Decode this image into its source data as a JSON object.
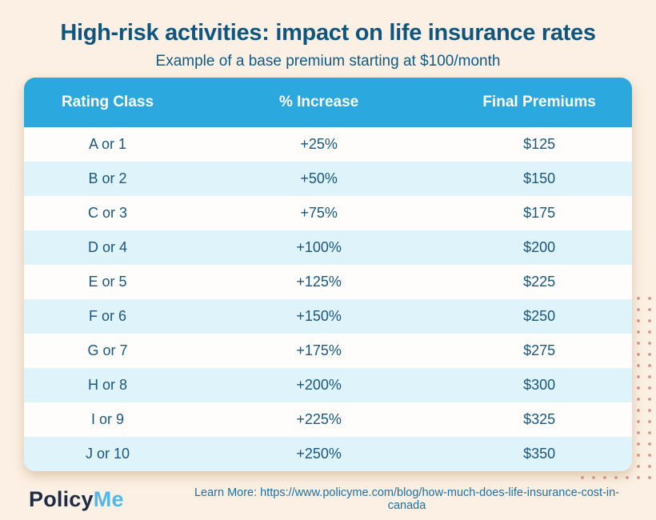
{
  "page": {
    "title": "High-risk activities: impact on life insurance rates",
    "subtitle": "Example of a base premium starting at $100/month"
  },
  "table": {
    "columns": [
      "Rating Class",
      "% Increase",
      "Final Premiums"
    ],
    "rows": [
      {
        "rating": "A or 1",
        "increase": "+25%",
        "premium": "$125"
      },
      {
        "rating": "B or 2",
        "increase": "+50%",
        "premium": "$150"
      },
      {
        "rating": "C or 3",
        "increase": "+75%",
        "premium": "$175"
      },
      {
        "rating": "D or 4",
        "increase": "+100%",
        "premium": "$200"
      },
      {
        "rating": "E or 5",
        "increase": "+125%",
        "premium": "$225"
      },
      {
        "rating": "F or 6",
        "increase": "+150%",
        "premium": "$250"
      },
      {
        "rating": "G or 7",
        "increase": "+175%",
        "premium": "$275"
      },
      {
        "rating": "H or 8",
        "increase": "+200%",
        "premium": "$300"
      },
      {
        "rating": "I or 9",
        "increase": "+225%",
        "premium": "$325"
      },
      {
        "rating": "J or 10",
        "increase": "+250%",
        "premium": "$350"
      }
    ]
  },
  "footer": {
    "logo_part1": "Policy",
    "logo_part2": "Me",
    "learn_more": "Learn More: https://www.policyme.com/blog/how-much-does-life-insurance-cost-in-canada"
  },
  "colors": {
    "background": "#FBF0E3",
    "table_header_bg": "#2BA8DE",
    "row_white_bg": "#FEFDFB",
    "row_blue_bg": "#DFF3FB",
    "title_text": "#0F567F",
    "cell_text": "#1A567D",
    "header_text": "#FFFFFF",
    "logo_policy": "#1D2B44",
    "logo_me": "#4FB8E8",
    "link_text": "#1F6FA3",
    "dot_pattern": "#DC9183"
  }
}
